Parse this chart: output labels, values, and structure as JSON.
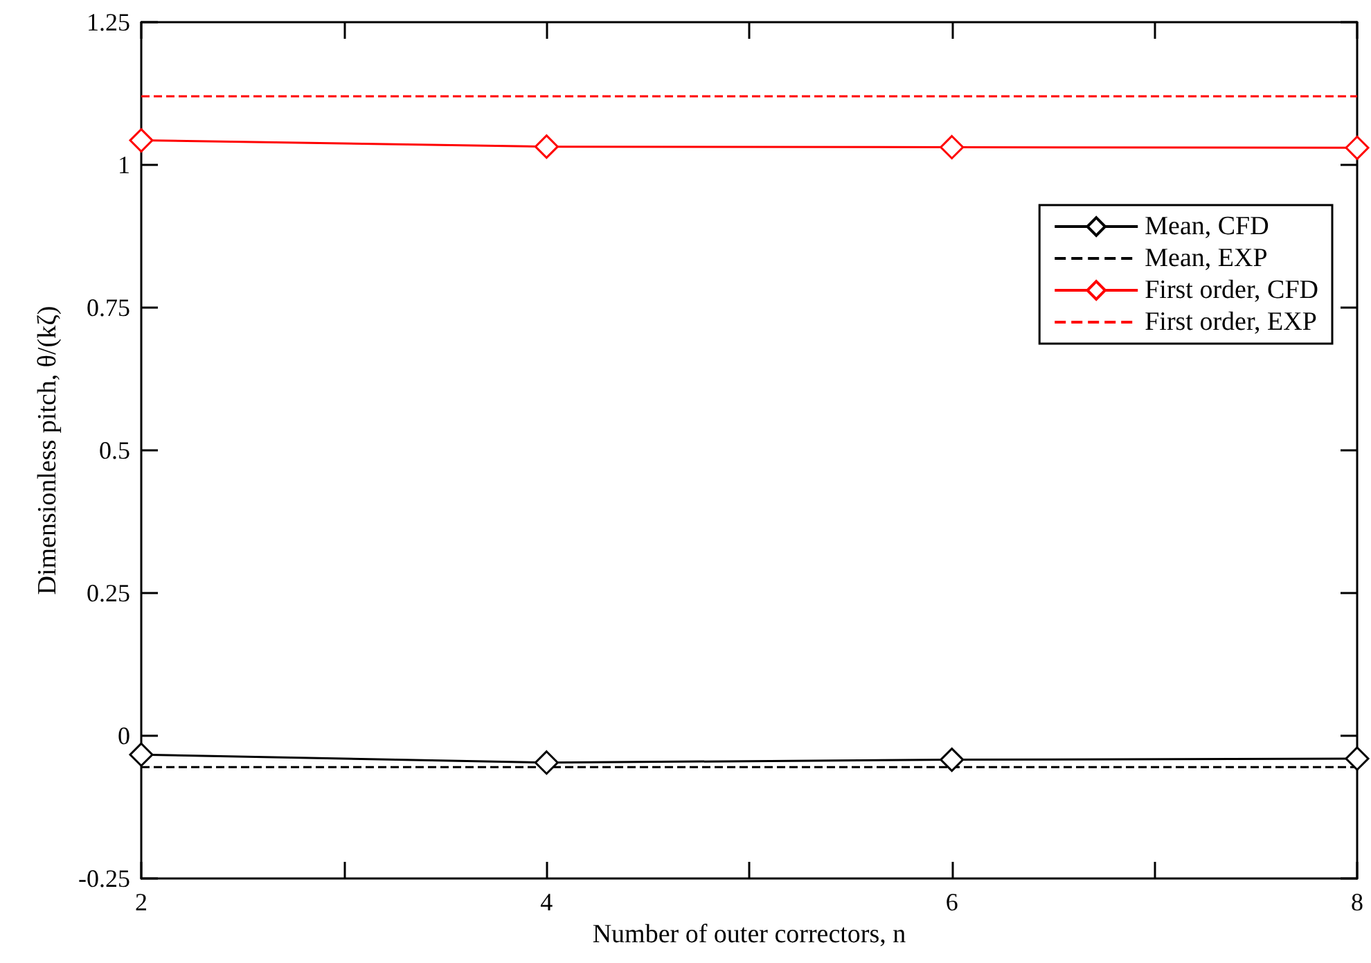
{
  "chart_data": {
    "type": "line",
    "xlabel": "Number of outer correctors, n",
    "ylabel": "Dimensionless pitch, θ/(kζ)",
    "x": [
      2,
      4,
      6,
      8
    ],
    "xlim": [
      2,
      8
    ],
    "xticks": [
      2,
      {
        "value": 3,
        "label": null
      },
      4,
      {
        "value": 5,
        "label": null
      },
      6,
      {
        "value": 7,
        "label": null
      },
      8
    ],
    "ylim": [
      -0.25,
      1.25
    ],
    "yticks": [
      -0.25,
      0,
      0.25,
      0.5,
      0.75,
      1,
      1.25
    ],
    "grid": false,
    "legend": "top right",
    "marker": "diamond",
    "line_style": "solid",
    "series": [
      {
        "name": "Mean, CFD",
        "color": "#000000",
        "values": [
          -0.033,
          -0.047,
          -0.042,
          -0.04
        ]
      },
      {
        "name": "Mean, EXP",
        "color": "#000000",
        "values": [
          -0.055,
          -0.055,
          -0.055,
          -0.055
        ],
        "marker": "none",
        "line_style": "dashed"
      },
      {
        "name": "First order, CFD",
        "color": "#ff0000",
        "values": [
          1.043,
          1.032,
          1.031,
          1.03
        ]
      },
      {
        "name": "First order, EXP",
        "color": "#ff0000",
        "values": [
          1.12,
          1.12,
          1.12,
          1.12
        ],
        "marker": "none",
        "line_style": "dashed"
      }
    ]
  }
}
